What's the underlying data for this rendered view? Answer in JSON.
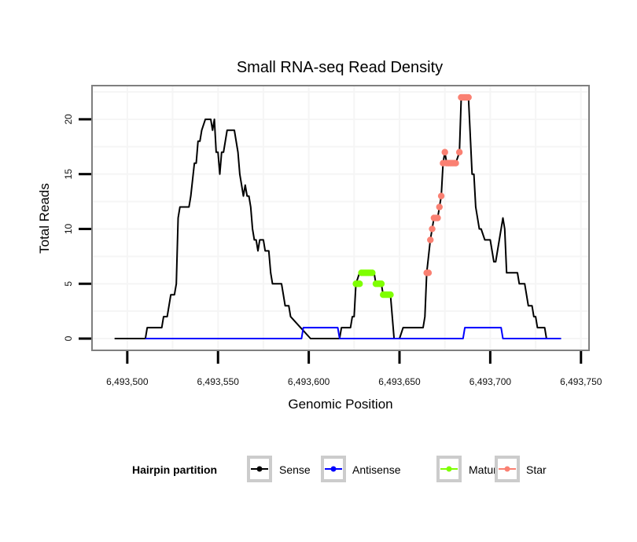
{
  "chart_data": {
    "type": "line",
    "title": "Small RNA-seq Read Density",
    "xlabel": "Genomic Position",
    "ylabel": "Total Reads",
    "xlim": [
      6493481,
      6493754
    ],
    "ylim": [
      -1,
      23
    ],
    "x_ticks": [
      6493500,
      6493550,
      6493600,
      6493650,
      6493700,
      6493750
    ],
    "x_tick_labels": [
      "6,493,500",
      "6,493,550",
      "6,493,600",
      "6,493,650",
      "6,493,700",
      "6,493,750"
    ],
    "y_ticks": [
      0,
      5,
      10,
      15,
      20
    ],
    "y_tick_labels": [
      "0",
      "5",
      "10",
      "15",
      "20"
    ],
    "grid": true,
    "legend": {
      "title": "Hairpin partition",
      "placement": "bottom",
      "entries": [
        "Sense",
        "Antisense",
        "Mature",
        "Star"
      ]
    },
    "series": [
      {
        "name": "Sense",
        "color": "#000000",
        "points": [
          [
            6493493,
            0
          ],
          [
            6493510,
            0
          ],
          [
            6493511,
            1
          ],
          [
            6493519,
            1
          ],
          [
            6493520,
            2
          ],
          [
            6493522,
            2
          ],
          [
            6493523,
            3
          ],
          [
            6493524,
            4
          ],
          [
            6493526,
            4
          ],
          [
            6493527,
            5
          ],
          [
            6493528,
            11
          ],
          [
            6493529,
            12
          ],
          [
            6493534,
            12
          ],
          [
            6493535,
            13
          ],
          [
            6493537,
            16
          ],
          [
            6493538,
            16
          ],
          [
            6493539,
            18
          ],
          [
            6493540,
            18
          ],
          [
            6493541,
            19
          ],
          [
            6493543,
            20
          ],
          [
            6493546,
            20
          ],
          [
            6493547,
            19
          ],
          [
            6493548,
            20
          ],
          [
            6493549,
            17
          ],
          [
            6493550,
            17
          ],
          [
            6493551,
            15
          ],
          [
            6493552,
            17
          ],
          [
            6493553,
            17
          ],
          [
            6493555,
            19
          ],
          [
            6493559,
            19
          ],
          [
            6493561,
            17
          ],
          [
            6493562,
            15
          ],
          [
            6493563,
            14
          ],
          [
            6493564,
            13
          ],
          [
            6493565,
            14
          ],
          [
            6493566,
            13
          ],
          [
            6493567,
            13
          ],
          [
            6493568,
            12
          ],
          [
            6493569,
            10
          ],
          [
            6493570,
            9
          ],
          [
            6493571,
            9
          ],
          [
            6493572,
            8
          ],
          [
            6493573,
            9
          ],
          [
            6493575,
            9
          ],
          [
            6493576,
            8
          ],
          [
            6493578,
            8
          ],
          [
            6493579,
            6
          ],
          [
            6493580,
            5
          ],
          [
            6493585,
            5
          ],
          [
            6493586,
            4
          ],
          [
            6493587,
            3
          ],
          [
            6493589,
            3
          ],
          [
            6493590,
            2
          ],
          [
            6493601,
            0
          ],
          [
            6493617,
            0
          ],
          [
            6493618,
            1
          ],
          [
            6493623,
            1
          ],
          [
            6493624,
            2
          ],
          [
            6493625,
            2
          ],
          [
            6493626,
            5
          ],
          [
            6493628,
            6
          ],
          [
            6493630,
            6
          ],
          [
            6493633,
            6
          ],
          [
            6493636,
            6
          ],
          [
            6493637,
            5
          ],
          [
            6493640,
            5
          ],
          [
            6493641,
            4
          ],
          [
            6493643,
            4
          ],
          [
            6493645,
            4
          ],
          [
            6493647,
            0
          ],
          [
            6493650,
            0
          ],
          [
            6493652,
            1
          ],
          [
            6493663,
            1
          ],
          [
            6493664,
            2
          ],
          [
            6493665,
            6
          ],
          [
            6493667,
            9
          ],
          [
            6493668,
            10
          ],
          [
            6493669,
            11
          ],
          [
            6493671,
            11
          ],
          [
            6493672,
            12
          ],
          [
            6493673,
            13
          ],
          [
            6493674,
            16
          ],
          [
            6493675,
            17
          ],
          [
            6493676,
            16
          ],
          [
            6493681,
            16
          ],
          [
            6493683,
            17
          ],
          [
            6493684,
            22
          ],
          [
            6493688,
            22
          ],
          [
            6493690,
            15
          ],
          [
            6493691,
            15
          ],
          [
            6493692,
            12
          ],
          [
            6493693,
            11
          ],
          [
            6493694,
            10
          ],
          [
            6493695,
            10
          ],
          [
            6493697,
            9
          ],
          [
            6493700,
            9
          ],
          [
            6493702,
            7
          ],
          [
            6493703,
            7
          ],
          [
            6493705,
            9
          ],
          [
            6493706,
            10
          ],
          [
            6493707,
            11
          ],
          [
            6493708,
            10
          ],
          [
            6493709,
            6
          ],
          [
            6493715,
            6
          ],
          [
            6493716,
            5
          ],
          [
            6493719,
            5
          ],
          [
            6493720,
            4
          ],
          [
            6493721,
            3
          ],
          [
            6493723,
            3
          ],
          [
            6493724,
            2
          ],
          [
            6493725,
            2
          ],
          [
            6493726,
            1
          ],
          [
            6493730,
            1
          ],
          [
            6493731,
            0
          ],
          [
            6493739,
            0
          ]
        ]
      },
      {
        "name": "Antisense",
        "color": "#0000ff",
        "points": [
          [
            6493510,
            0
          ],
          [
            6493596,
            0
          ],
          [
            6493597,
            1
          ],
          [
            6493616,
            1
          ],
          [
            6493617,
            0
          ],
          [
            6493685,
            0
          ],
          [
            6493686,
            1
          ],
          [
            6493706,
            1
          ],
          [
            6493707,
            0
          ],
          [
            6493739,
            0
          ]
        ]
      },
      {
        "name": "Mature",
        "color": "#7fff00",
        "points": [
          [
            6493626,
            5
          ],
          [
            6493627,
            5
          ],
          [
            6493628,
            5
          ],
          [
            6493629,
            6
          ],
          [
            6493630,
            6
          ],
          [
            6493631,
            6
          ],
          [
            6493632,
            6
          ],
          [
            6493633,
            6
          ],
          [
            6493634,
            6
          ],
          [
            6493635,
            6
          ],
          [
            6493637,
            5
          ],
          [
            6493638,
            5
          ],
          [
            6493639,
            5
          ],
          [
            6493640,
            5
          ],
          [
            6493641,
            4
          ],
          [
            6493642,
            4
          ],
          [
            6493643,
            4
          ],
          [
            6493644,
            4
          ],
          [
            6493645,
            4
          ]
        ]
      },
      {
        "name": "Star",
        "color": "#fa8072",
        "points": [
          [
            6493665,
            6
          ],
          [
            6493666,
            6
          ],
          [
            6493667,
            9
          ],
          [
            6493668,
            10
          ],
          [
            6493669,
            11
          ],
          [
            6493670,
            11
          ],
          [
            6493671,
            11
          ],
          [
            6493672,
            12
          ],
          [
            6493673,
            13
          ],
          [
            6493674,
            16
          ],
          [
            6493675,
            17
          ],
          [
            6493676,
            16
          ],
          [
            6493677,
            16
          ],
          [
            6493678,
            16
          ],
          [
            6493679,
            16
          ],
          [
            6493680,
            16
          ],
          [
            6493681,
            16
          ],
          [
            6493683,
            17
          ],
          [
            6493684,
            22
          ],
          [
            6493685,
            22
          ],
          [
            6493686,
            22
          ],
          [
            6493687,
            22
          ],
          [
            6493688,
            22
          ]
        ]
      }
    ]
  }
}
